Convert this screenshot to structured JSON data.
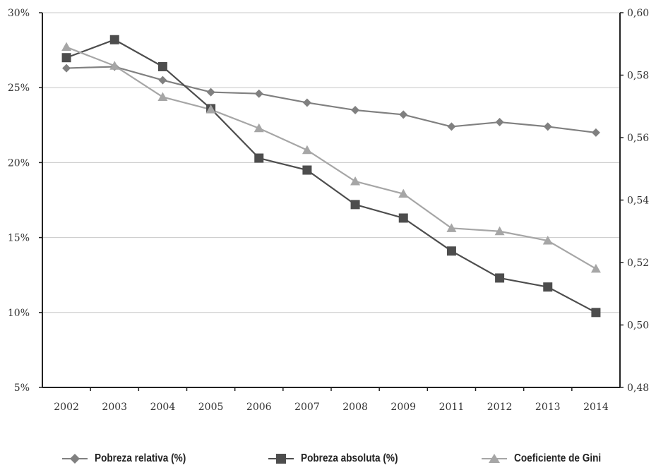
{
  "chart_data": {
    "type": "line",
    "categories": [
      "2002",
      "2003",
      "2004",
      "2005",
      "2006",
      "2007",
      "2008",
      "2009",
      "2011",
      "2012",
      "2013",
      "2014"
    ],
    "y_left": {
      "ticks": [
        "5%",
        "10%",
        "15%",
        "20%",
        "25%",
        "30%"
      ],
      "tick_values": [
        5,
        10,
        15,
        20,
        25,
        30
      ],
      "range": [
        5,
        30
      ]
    },
    "y_right": {
      "ticks": [
        "0,48",
        "0,50",
        "0,52",
        "0,54",
        "0,56",
        "0,58",
        "0,60"
      ],
      "tick_values": [
        0.48,
        0.5,
        0.52,
        0.54,
        0.56,
        0.58,
        0.6
      ],
      "range": [
        0.48,
        0.6
      ]
    },
    "grid": true,
    "legend_position": "bottom",
    "series": [
      {
        "name": "Pobreza relativa (%)",
        "axis": "left",
        "marker": "diamond",
        "color": "#808080",
        "values": [
          26.3,
          26.4,
          25.5,
          24.7,
          24.6,
          24.0,
          23.5,
          23.2,
          22.4,
          22.7,
          22.4,
          22.0
        ]
      },
      {
        "name": "Pobreza absoluta (%)",
        "axis": "left",
        "marker": "square",
        "color": "#4d4d4d",
        "values": [
          27.0,
          28.2,
          26.4,
          23.6,
          20.3,
          19.5,
          17.2,
          16.3,
          14.1,
          12.3,
          11.7,
          10.0
        ]
      },
      {
        "name": "Coeficiente de Gini",
        "axis": "right",
        "marker": "triangle",
        "color": "#a6a6a6",
        "values": [
          0.589,
          0.583,
          0.573,
          0.569,
          0.563,
          0.556,
          0.546,
          0.542,
          0.531,
          0.53,
          0.527,
          0.518
        ]
      }
    ]
  }
}
